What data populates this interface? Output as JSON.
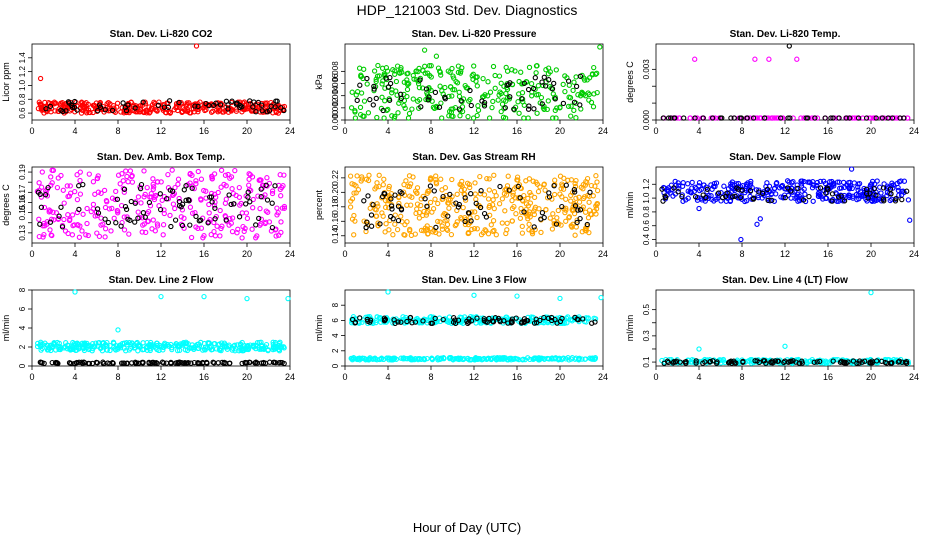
{
  "figure": {
    "title": "HDP_121003  Std. Dev. Diagnostics",
    "xlabel": "Hour of Day (UTC)"
  },
  "chart_data": [
    {
      "type": "scatter",
      "title": "Stan. Dev. Li-820 CO2",
      "ylabel": "Licor ppm",
      "xlim": [
        0,
        24
      ],
      "ylim": [
        0.5,
        1.6
      ],
      "xticks": [
        0,
        4,
        8,
        12,
        16,
        20,
        24
      ],
      "yticks": [
        0.6,
        0.8,
        1.0,
        1.2,
        1.4
      ],
      "ytick_labels": [
        "0.6",
        "0.8",
        "1.0",
        "1.2",
        "1.4"
      ],
      "grid": false,
      "series": [
        {
          "color": "#ff0000",
          "band": [
            0.6,
            0.76
          ],
          "n": 340,
          "outliers": [
            [
              0.8,
              1.1
            ],
            [
              15.3,
              1.58
            ]
          ]
        },
        {
          "color": "#000000",
          "band": [
            0.62,
            0.78
          ],
          "n": 60,
          "outliers": []
        }
      ]
    },
    {
      "type": "scatter",
      "title": "Stan. Dev. Li-820 Pressure",
      "ylabel": "kPa",
      "xlim": [
        0,
        24
      ],
      "ylim": [
        0,
        0.0125
      ],
      "xticks": [
        0,
        4,
        8,
        12,
        16,
        20,
        24
      ],
      "yticks": [
        0,
        0.002,
        0.004,
        0.006,
        0.008
      ],
      "ytick_labels": [
        "0.000",
        "0.002",
        "0.004",
        "0.006",
        "0.008"
      ],
      "grid": false,
      "series": [
        {
          "color": "#00cc00",
          "band": [
            0.0,
            0.009
          ],
          "n": 320,
          "outliers": [
            [
              7.4,
              0.0115
            ],
            [
              23.7,
              0.012
            ],
            [
              3.5,
              0.0085
            ],
            [
              8.5,
              0.0105
            ]
          ]
        },
        {
          "color": "#000000",
          "band": [
            0.0015,
            0.0072
          ],
          "n": 60,
          "outliers": []
        }
      ]
    },
    {
      "type": "scatter",
      "title": "Stan. Dev. Li-820 Temp.",
      "ylabel": "degrees C",
      "xlim": [
        0,
        24
      ],
      "ylim": [
        0,
        0.0045
      ],
      "xticks": [
        0,
        4,
        8,
        12,
        16,
        20,
        24
      ],
      "yticks": [
        0,
        0.001,
        0.002,
        0.003
      ],
      "ytick_labels": [
        "0.000",
        "",
        "",
        "0.003"
      ],
      "grid": false,
      "series": [
        {
          "color": "#ff00ff",
          "band": [
            0.0,
            0.0
          ],
          "n": 80,
          "outliers": [
            [
              3.6,
              0.0036
            ],
            [
              9.2,
              0.0036
            ],
            [
              10.5,
              0.0036
            ],
            [
              13.1,
              0.0036
            ]
          ]
        },
        {
          "color": "#000000",
          "band": [
            0.0,
            0.0
          ],
          "n": 40,
          "outliers": [
            [
              12.4,
              0.0044
            ]
          ]
        }
      ]
    },
    {
      "type": "scatter",
      "title": "Stan. Dev. Amb. Box Temp.",
      "ylabel": "degrees C",
      "xlim": [
        0,
        24
      ],
      "ylim": [
        0.12,
        0.195
      ],
      "xticks": [
        0,
        4,
        8,
        12,
        16,
        20,
        24
      ],
      "yticks": [
        0.13,
        0.14,
        0.15,
        0.16,
        0.17,
        0.18,
        0.19
      ],
      "ytick_labels": [
        "0.13",
        "",
        "0.15",
        "0.16",
        "0.17",
        "",
        "0.19"
      ],
      "grid": false,
      "series": [
        {
          "color": "#ff00ff",
          "band": [
            0.125,
            0.192
          ],
          "n": 340,
          "outliers": []
        },
        {
          "color": "#000000",
          "band": [
            0.135,
            0.178
          ],
          "n": 80,
          "outliers": []
        }
      ]
    },
    {
      "type": "scatter",
      "title": "Stan. Dev. Gas Stream RH",
      "ylabel": "percent",
      "xlim": [
        0,
        24
      ],
      "ylim": [
        0.13,
        0.235
      ],
      "xticks": [
        0,
        4,
        8,
        12,
        16,
        20,
        24
      ],
      "yticks": [
        0.14,
        0.16,
        0.18,
        0.2,
        0.22
      ],
      "ytick_labels": [
        "0.14",
        "0.16",
        "0.18",
        "0.20",
        "0.22"
      ],
      "grid": false,
      "series": [
        {
          "color": "#ffa500",
          "band": [
            0.14,
            0.225
          ],
          "n": 420,
          "outliers": []
        },
        {
          "color": "#000000",
          "band": [
            0.15,
            0.21
          ],
          "n": 70,
          "outliers": []
        }
      ]
    },
    {
      "type": "scatter",
      "title": "Stan. Dev. Sample Flow",
      "ylabel": "ml/min",
      "xlim": [
        0,
        24
      ],
      "ylim": [
        0.35,
        1.45
      ],
      "xticks": [
        0,
        4,
        8,
        12,
        16,
        20,
        24
      ],
      "yticks": [
        0.4,
        0.6,
        0.8,
        1.0,
        1.2
      ],
      "ytick_labels": [
        "0.4",
        "0.6",
        "0.8",
        "1.0",
        "1.2"
      ],
      "grid": false,
      "series": [
        {
          "color": "#0000ff",
          "band": [
            0.95,
            1.25
          ],
          "n": 340,
          "outliers": [
            [
              7.9,
              0.4
            ],
            [
              9.4,
              0.62
            ],
            [
              9.7,
              0.7
            ],
            [
              23.6,
              0.68
            ],
            [
              18.2,
              1.42
            ],
            [
              4.0,
              0.85
            ]
          ]
        },
        {
          "color": "#000000",
          "band": [
            0.95,
            1.15
          ],
          "n": 60,
          "outliers": []
        }
      ]
    },
    {
      "type": "scatter",
      "title": "Stan. Dev. Line 2 Flow",
      "ylabel": "ml/min",
      "xlim": [
        0,
        24
      ],
      "ylim": [
        0,
        8
      ],
      "xticks": [
        0,
        4,
        8,
        12,
        16,
        20,
        24
      ],
      "yticks": [
        0,
        2,
        4,
        6,
        8
      ],
      "ytick_labels": [
        "0",
        "2",
        "4",
        "6",
        "8"
      ],
      "grid": false,
      "series": [
        {
          "color": "#00ffff",
          "band": [
            1.6,
            2.5
          ],
          "n": 320,
          "outliers": [
            [
              4.0,
              7.8
            ],
            [
              8.0,
              3.8
            ],
            [
              12.0,
              7.3
            ],
            [
              16.0,
              7.3
            ],
            [
              20.0,
              7.1
            ],
            [
              24.0,
              7.1
            ]
          ]
        },
        {
          "color": "#000000",
          "band": [
            0.25,
            0.4
          ],
          "n": 120,
          "outliers": []
        }
      ]
    },
    {
      "type": "scatter",
      "title": "Stan. Dev. Line 3 Flow",
      "ylabel": "ml/min",
      "xlim": [
        0,
        24
      ],
      "ylim": [
        0,
        10
      ],
      "xticks": [
        0,
        4,
        8,
        12,
        16,
        20,
        24
      ],
      "yticks": [
        0,
        2,
        4,
        6,
        8
      ],
      "ytick_labels": [
        "0",
        "2",
        "4",
        "6",
        "8"
      ],
      "grid": false,
      "series": [
        {
          "color": "#00ffff",
          "band": [
            5.6,
            6.5
          ],
          "n": 260,
          "outliers": [
            [
              4.0,
              10.0
            ],
            [
              12.0,
              9.3
            ],
            [
              16.0,
              9.2
            ],
            [
              20.0,
              8.9
            ],
            [
              24.0,
              9.0
            ]
          ]
        },
        {
          "color": "#00ffff",
          "band": [
            0.8,
            1.1
          ],
          "n": 220,
          "outliers": []
        },
        {
          "color": "#000000",
          "band": [
            5.6,
            6.4
          ],
          "n": 80,
          "outliers": []
        }
      ]
    },
    {
      "type": "scatter",
      "title": "Stan. Dev. Line 4 (LT) Flow",
      "ylabel": "ml/min",
      "xlim": [
        0,
        24
      ],
      "ylim": [
        0.07,
        0.65
      ],
      "xticks": [
        0,
        4,
        8,
        12,
        16,
        20,
        24
      ],
      "yticks": [
        0.1,
        0.2,
        0.3,
        0.4,
        0.5
      ],
      "ytick_labels": [
        "0.1",
        "",
        "0.3",
        "",
        "0.5"
      ],
      "grid": false,
      "series": [
        {
          "color": "#00ffff",
          "band": [
            0.09,
            0.12
          ],
          "n": 220,
          "outliers": [
            [
              4.0,
              0.2
            ],
            [
              12.0,
              0.22
            ],
            [
              20.0,
              0.63
            ]
          ]
        },
        {
          "color": "#000000",
          "band": [
            0.09,
            0.11
          ],
          "n": 90,
          "outliers": []
        }
      ]
    }
  ]
}
